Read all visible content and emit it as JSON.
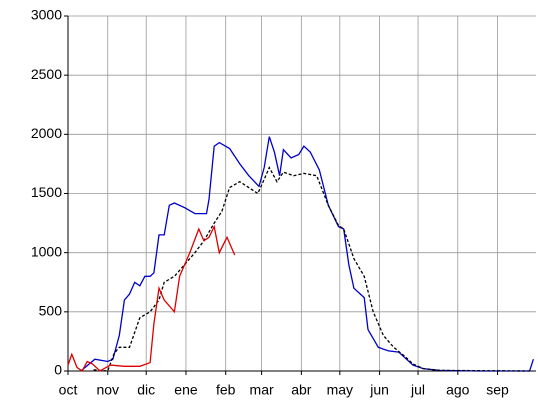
{
  "chart_data": {
    "type": "line",
    "xlim": [
      0,
      365
    ],
    "xticks": [
      {
        "value": 0,
        "label": "oct"
      },
      {
        "value": 31,
        "label": "nov"
      },
      {
        "value": 61,
        "label": "dic"
      },
      {
        "value": 92,
        "label": "ene"
      },
      {
        "value": 123,
        "label": "feb"
      },
      {
        "value": 151,
        "label": "mar"
      },
      {
        "value": 182,
        "label": "abr"
      },
      {
        "value": 212,
        "label": "may"
      },
      {
        "value": 243,
        "label": "jun"
      },
      {
        "value": 273,
        "label": "jul"
      },
      {
        "value": 304,
        "label": "ago"
      },
      {
        "value": 335,
        "label": "sep"
      }
    ],
    "ylim": [
      0,
      3000
    ],
    "yticks": [
      0,
      500,
      1000,
      1500,
      2000,
      2500,
      3000
    ],
    "grid": true,
    "series": [
      {
        "color": "#0000cc",
        "dashed": false,
        "x": [
          10,
          21,
          31,
          35,
          40,
          44,
          48,
          52,
          56,
          60,
          64,
          67,
          71,
          75,
          79,
          83,
          91,
          99,
          108,
          110,
          114,
          118,
          126,
          134,
          141,
          149,
          153,
          157,
          161,
          165,
          168,
          174,
          180,
          184,
          189,
          196,
          203,
          211,
          215,
          219,
          223,
          231,
          234,
          242,
          250,
          258,
          262,
          269,
          277,
          290,
          320,
          360,
          363
        ],
        "values": [
          0,
          100,
          80,
          100,
          300,
          600,
          650,
          750,
          720,
          800,
          800,
          830,
          1150,
          1150,
          1400,
          1420,
          1380,
          1330,
          1330,
          1450,
          1900,
          1930,
          1880,
          1750,
          1650,
          1560,
          1720,
          1980,
          1850,
          1650,
          1870,
          1800,
          1830,
          1900,
          1850,
          1700,
          1400,
          1220,
          1200,
          900,
          700,
          620,
          350,
          200,
          170,
          160,
          120,
          50,
          20,
          5,
          0,
          0,
          100
        ]
      },
      {
        "color": "#000000",
        "dashed": true,
        "x": [
          20,
          31,
          36,
          40,
          48,
          56,
          64,
          71,
          75,
          83,
          91,
          99,
          106,
          114,
          120,
          126,
          134,
          141,
          148,
          153,
          157,
          163,
          168,
          176,
          184,
          194,
          203,
          211,
          215,
          223,
          231,
          238,
          246,
          254,
          262,
          269,
          277,
          290,
          360
        ],
        "values": [
          10,
          0,
          150,
          200,
          200,
          450,
          500,
          600,
          750,
          800,
          900,
          1000,
          1100,
          1250,
          1350,
          1550,
          1600,
          1550,
          1500,
          1620,
          1720,
          1600,
          1680,
          1650,
          1670,
          1650,
          1400,
          1230,
          1200,
          950,
          800,
          500,
          300,
          200,
          130,
          60,
          20,
          5,
          0
        ]
      },
      {
        "color": "#dd0000",
        "dashed": false,
        "x": [
          0,
          3,
          7,
          11,
          15,
          19,
          25,
          33,
          44,
          56,
          64,
          67,
          71,
          75,
          83,
          87,
          95,
          102,
          106,
          110,
          114,
          118,
          124,
          130
        ],
        "values": [
          50,
          140,
          30,
          0,
          80,
          60,
          0,
          50,
          40,
          40,
          70,
          400,
          700,
          600,
          500,
          800,
          1000,
          1200,
          1100,
          1130,
          1220,
          1000,
          1130,
          980
        ]
      }
    ]
  }
}
